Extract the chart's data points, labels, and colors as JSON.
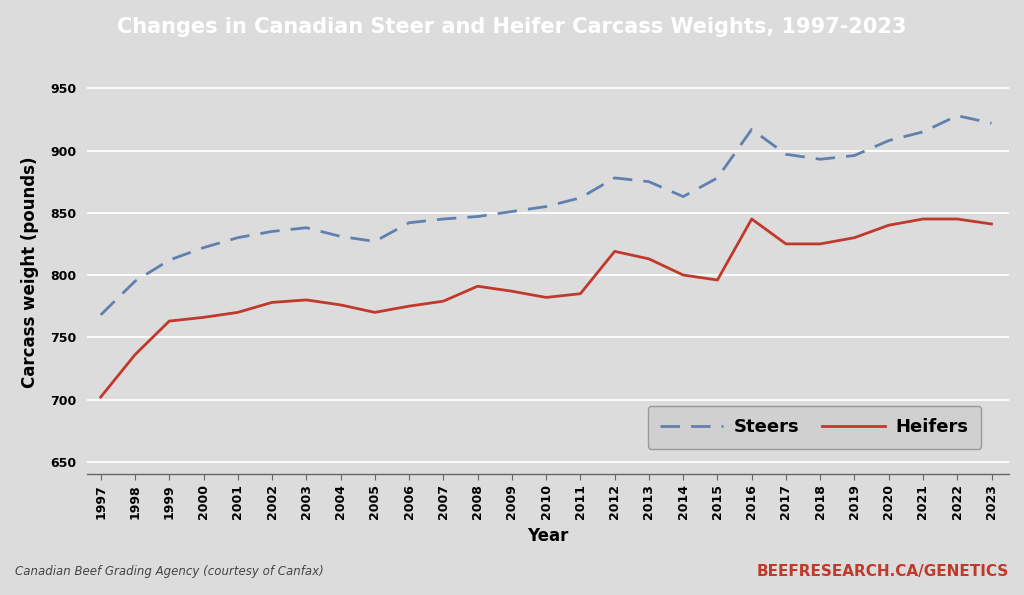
{
  "title": "Changes in Canadian Steer and Heifer Carcass Weights, 1997-2023",
  "xlabel": "Year",
  "ylabel": "Carcass weight (pounds)",
  "years": [
    1997,
    1998,
    1999,
    2000,
    2001,
    2002,
    2003,
    2004,
    2005,
    2006,
    2007,
    2008,
    2009,
    2010,
    2011,
    2012,
    2013,
    2014,
    2015,
    2016,
    2017,
    2018,
    2019,
    2020,
    2021,
    2022,
    2023
  ],
  "steers": [
    768,
    795,
    812,
    822,
    830,
    835,
    838,
    831,
    827,
    842,
    845,
    847,
    851,
    855,
    862,
    878,
    875,
    863,
    878,
    917,
    897,
    893,
    896,
    908,
    915,
    928,
    922
  ],
  "heifers": [
    702,
    736,
    763,
    766,
    770,
    778,
    780,
    776,
    770,
    775,
    779,
    791,
    787,
    782,
    785,
    819,
    813,
    800,
    796,
    845,
    825,
    825,
    830,
    840,
    845,
    845,
    841
  ],
  "ylim": [
    640,
    965
  ],
  "yticks": [
    650,
    700,
    750,
    800,
    850,
    900,
    950
  ],
  "steer_color": "#6080b0",
  "heifer_color": "#c0392b",
  "bg_plot": "#dcdcdc",
  "bg_title": "#3c3c50",
  "bg_footer": "#c0c0c0",
  "title_color": "#ffffff",
  "footer_left": "Canadian Beef Grading Agency (courtesy of Canfax)",
  "footer_right": "BEEFRESEARCH.CA/GENETICS",
  "footer_right_color": "#c0392b",
  "title_fontsize": 15,
  "axis_label_fontsize": 12,
  "tick_fontsize": 9,
  "legend_fontsize": 13
}
